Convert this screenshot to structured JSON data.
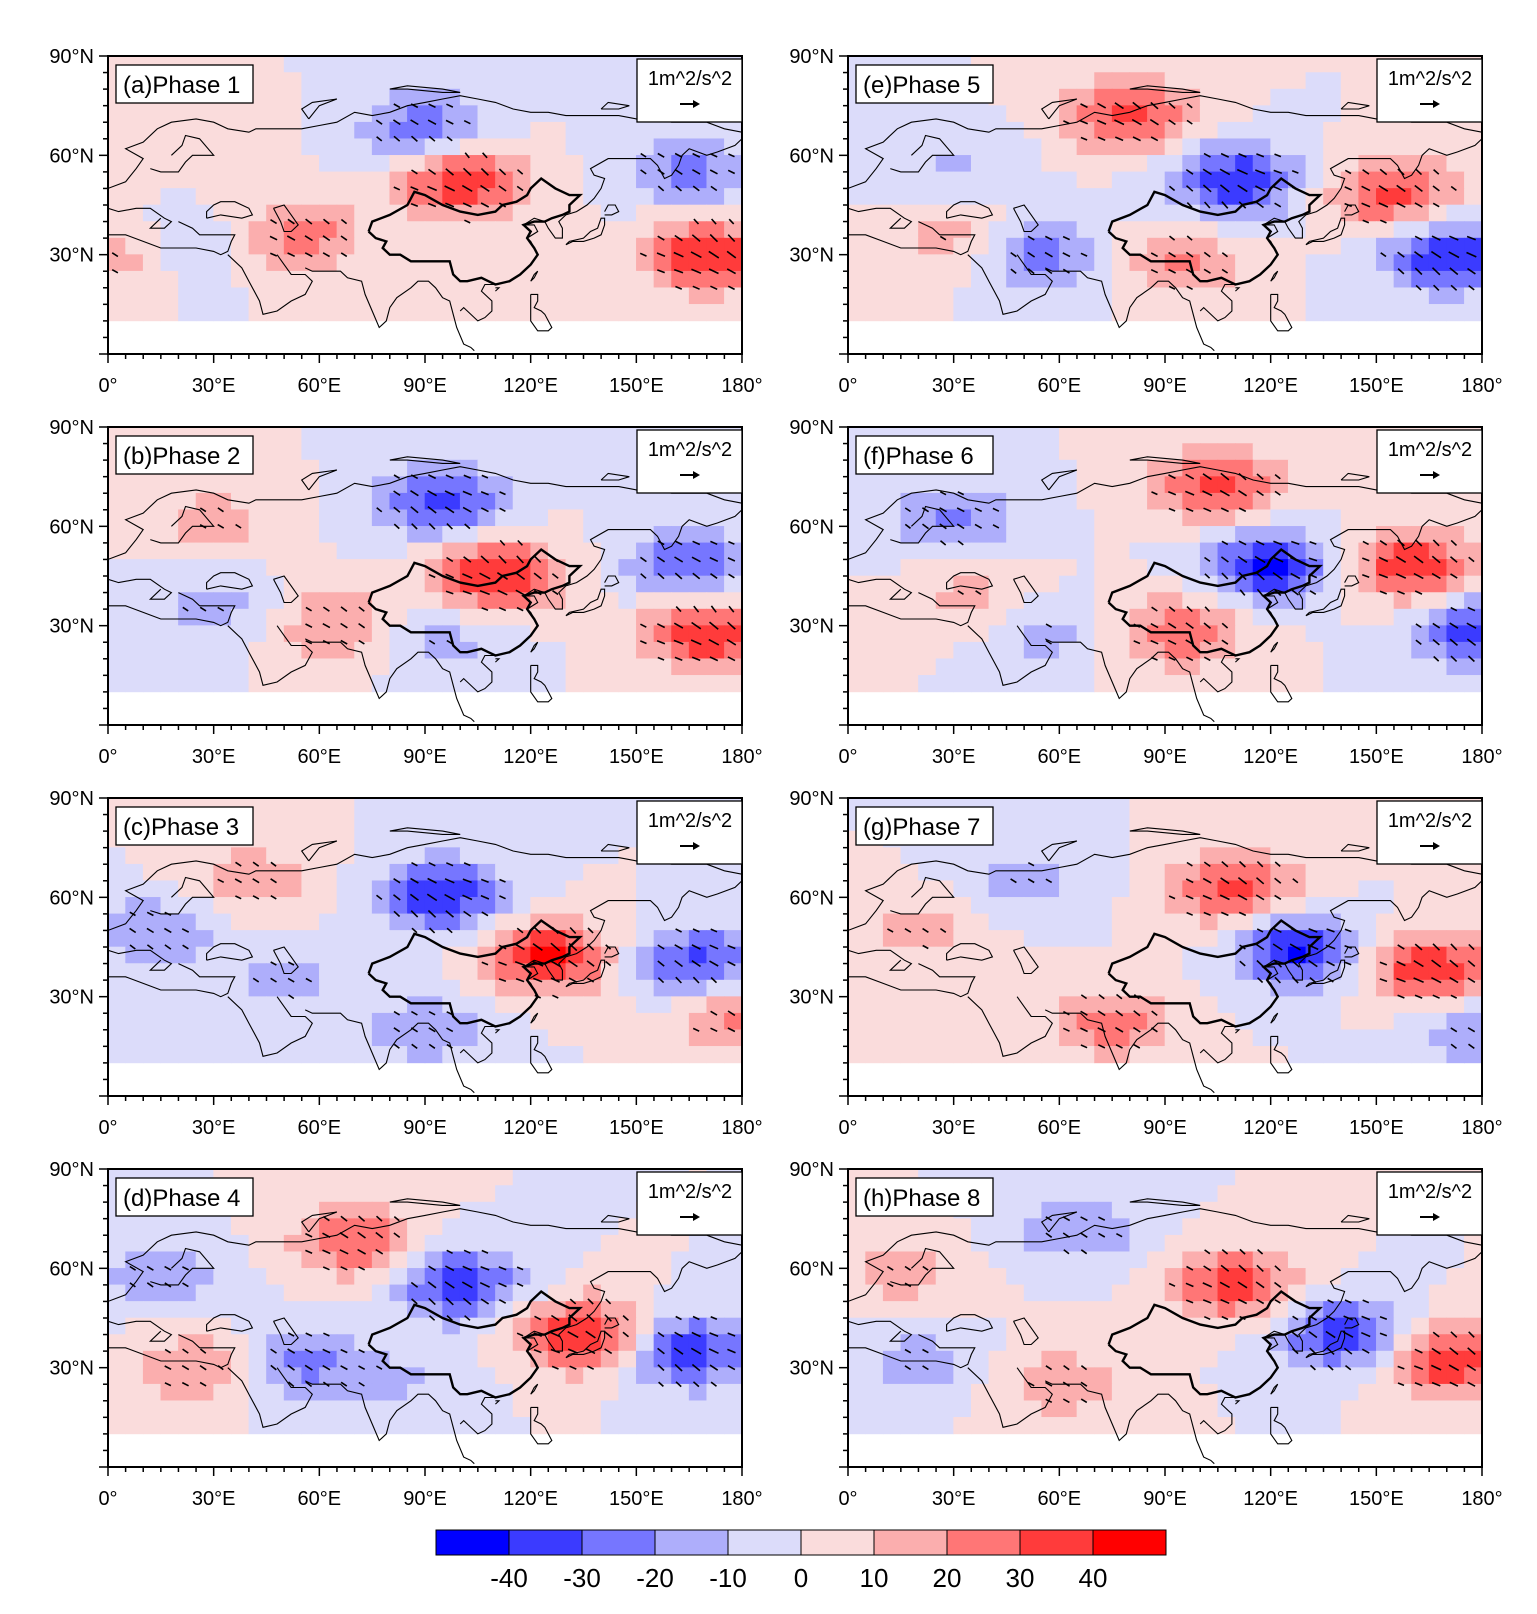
{
  "figure": {
    "description_type": "multi-panel composite map",
    "panels": [
      {
        "label": "(a)Phase 1",
        "vector_ref": "1m^2/s^2",
        "anomalies": [
          {
            "lon": 100,
            "lat": 52,
            "value": 40
          },
          {
            "lon": 170,
            "lat": 30,
            "value": 40
          },
          {
            "lon": 55,
            "lat": 35,
            "value": 25
          },
          {
            "lon": 5,
            "lat": 30,
            "value": 20
          },
          {
            "lon": 90,
            "lat": 68,
            "value": -28
          },
          {
            "lon": 165,
            "lat": 55,
            "value": -25
          },
          {
            "lon": 20,
            "lat": 32,
            "value": -15
          },
          {
            "lon": 25,
            "lat": 65,
            "value": 10
          }
        ]
      },
      {
        "label": "(b)Phase 2",
        "vector_ref": "1m^2/s^2",
        "anomalies": [
          {
            "lon": 110,
            "lat": 45,
            "value": 42
          },
          {
            "lon": 170,
            "lat": 28,
            "value": 40
          },
          {
            "lon": 65,
            "lat": 30,
            "value": 22
          },
          {
            "lon": 30,
            "lat": 62,
            "value": 15
          },
          {
            "lon": 95,
            "lat": 67,
            "value": -35
          },
          {
            "lon": 165,
            "lat": 48,
            "value": -30
          },
          {
            "lon": 30,
            "lat": 35,
            "value": -15
          },
          {
            "lon": 95,
            "lat": 25,
            "value": -15
          }
        ]
      },
      {
        "label": "(c)Phase 3",
        "vector_ref": "1m^2/s^2",
        "anomalies": [
          {
            "lon": 125,
            "lat": 42,
            "value": 42
          },
          {
            "lon": 178,
            "lat": 25,
            "value": 25
          },
          {
            "lon": 40,
            "lat": 65,
            "value": 18
          },
          {
            "lon": 95,
            "lat": 60,
            "value": -38
          },
          {
            "lon": 168,
            "lat": 40,
            "value": -35
          },
          {
            "lon": 15,
            "lat": 50,
            "value": -20
          },
          {
            "lon": 50,
            "lat": 35,
            "value": -15
          },
          {
            "lon": 90,
            "lat": 20,
            "value": -18
          }
        ]
      },
      {
        "label": "(d)Phase 4",
        "vector_ref": "1m^2/s^2",
        "anomalies": [
          {
            "lon": 135,
            "lat": 40,
            "value": 42
          },
          {
            "lon": 70,
            "lat": 68,
            "value": 30
          },
          {
            "lon": 25,
            "lat": 30,
            "value": 20
          },
          {
            "lon": 100,
            "lat": 55,
            "value": -38
          },
          {
            "lon": 165,
            "lat": 35,
            "value": -38
          },
          {
            "lon": 55,
            "lat": 32,
            "value": -25
          },
          {
            "lon": 15,
            "lat": 58,
            "value": -18
          },
          {
            "lon": 85,
            "lat": 25,
            "value": -10
          }
        ]
      },
      {
        "label": "(e)Phase 5",
        "vector_ref": "1m^2/s^2",
        "anomalies": [
          {
            "lon": 80,
            "lat": 72,
            "value": 35
          },
          {
            "lon": 155,
            "lat": 48,
            "value": 35
          },
          {
            "lon": 95,
            "lat": 28,
            "value": 22
          },
          {
            "lon": 30,
            "lat": 35,
            "value": 15
          },
          {
            "lon": 110,
            "lat": 52,
            "value": -40
          },
          {
            "lon": 170,
            "lat": 30,
            "value": -40
          },
          {
            "lon": 55,
            "lat": 30,
            "value": -25
          },
          {
            "lon": 30,
            "lat": 58,
            "value": -12
          }
        ]
      },
      {
        "label": "(f)Phase 6",
        "vector_ref": "1m^2/s^2",
        "anomalies": [
          {
            "lon": 105,
            "lat": 72,
            "value": 35
          },
          {
            "lon": 160,
            "lat": 48,
            "value": 38
          },
          {
            "lon": 95,
            "lat": 28,
            "value": 28
          },
          {
            "lon": 35,
            "lat": 38,
            "value": 15
          },
          {
            "lon": 120,
            "lat": 48,
            "value": -42
          },
          {
            "lon": 178,
            "lat": 28,
            "value": -35
          },
          {
            "lon": 30,
            "lat": 62,
            "value": -22
          },
          {
            "lon": 55,
            "lat": 28,
            "value": -15
          }
        ]
      },
      {
        "label": "(g)Phase 7",
        "vector_ref": "1m^2/s^2",
        "anomalies": [
          {
            "lon": 110,
            "lat": 62,
            "value": 35
          },
          {
            "lon": 165,
            "lat": 38,
            "value": 40
          },
          {
            "lon": 75,
            "lat": 22,
            "value": 25
          },
          {
            "lon": 20,
            "lat": 50,
            "value": 15
          },
          {
            "lon": 128,
            "lat": 44,
            "value": -42
          },
          {
            "lon": 50,
            "lat": 65,
            "value": -15
          },
          {
            "lon": 178,
            "lat": 20,
            "value": -20
          }
        ]
      },
      {
        "label": "(h)Phase 8",
        "vector_ref": "1m^2/s^2",
        "anomalies": [
          {
            "lon": 110,
            "lat": 55,
            "value": 35
          },
          {
            "lon": 170,
            "lat": 32,
            "value": 38
          },
          {
            "lon": 60,
            "lat": 25,
            "value": 18
          },
          {
            "lon": 15,
            "lat": 58,
            "value": 15
          },
          {
            "lon": 140,
            "lat": 40,
            "value": -38
          },
          {
            "lon": 65,
            "lat": 72,
            "value": -20
          },
          {
            "lon": 20,
            "lat": 32,
            "value": -15
          }
        ]
      }
    ],
    "x_ticks": [
      "0°",
      "30°E",
      "60°E",
      "90°E",
      "120°E",
      "150°E",
      "180°"
    ],
    "y_ticks": [
      "90°N",
      "60°N",
      "30°N"
    ],
    "colorbar": {
      "labels": [
        "-40",
        "-30",
        "-20",
        "-10",
        "0",
        "10",
        "20",
        "30",
        "40"
      ],
      "colors": [
        "#0000ff",
        "#3b3bff",
        "#7676ff",
        "#aeaefb",
        "#dcdcfa",
        "#fadcdc",
        "#fbaeae",
        "#ff7676",
        "#ff3b3b",
        "#ff0000"
      ]
    }
  }
}
